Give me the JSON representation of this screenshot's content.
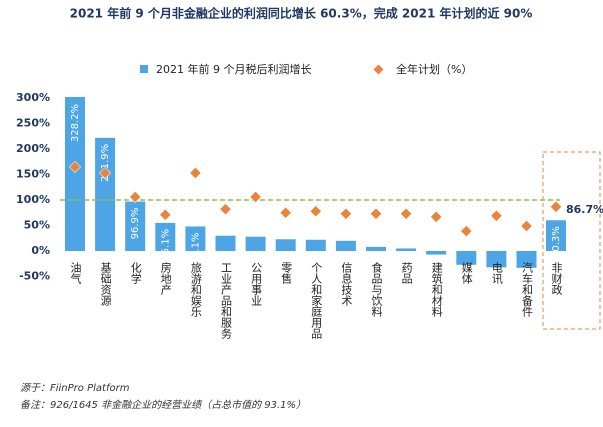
{
  "chart_data": {
    "type": "bar",
    "title": "2021 年前 9 个月非金融企业的利润同比增长 60.3%，完成 2021 年计划的近 90%",
    "categories": [
      "油气",
      "基础资源",
      "化学",
      "房地产",
      "旅游和娱乐",
      "工业产品和服务",
      "公用事业",
      "零售",
      "个人和家庭用品",
      "信息技术",
      "食品与饮料",
      "药品",
      "建筑和材料",
      "媒体",
      "电讯",
      "汽车和备件",
      "非财政"
    ],
    "series": [
      {
        "name": "2021 年前 9 个月税后利润增长",
        "color": "#4ea5e6",
        "values": [
          328.2,
          221.9,
          96.9,
          55.1,
          48.1,
          30,
          28,
          23,
          22,
          20,
          8,
          5,
          -7,
          -27,
          -32,
          -33,
          60.3
        ],
        "value_labels": [
          "328.2%",
          "221.9%",
          "96.9%",
          "55.1%",
          "48.1%",
          null,
          null,
          null,
          null,
          null,
          null,
          null,
          null,
          null,
          null,
          null,
          "60.3%"
        ]
      },
      {
        "name": "全年计划（%）",
        "color": "#e8853d",
        "marker": "diamond",
        "values": [
          165,
          153,
          106,
          71,
          153,
          82,
          106,
          75,
          78,
          73,
          73,
          73,
          67,
          39,
          69,
          49,
          86.7
        ],
        "value_labels": [
          null,
          null,
          null,
          null,
          null,
          null,
          null,
          null,
          null,
          null,
          null,
          null,
          null,
          null,
          null,
          null,
          "86.7%"
        ]
      }
    ],
    "reference_line": 100,
    "ylim": [
      -50,
      300
    ],
    "yticks": [
      {
        "value": -50,
        "label": "-50%"
      },
      {
        "value": 0,
        "label": "0%"
      },
      {
        "value": 50,
        "label": "50%"
      },
      {
        "value": 100,
        "label": "100%"
      },
      {
        "value": 150,
        "label": "150%"
      },
      {
        "value": 200,
        "label": "200%"
      },
      {
        "value": 250,
        "label": "250%"
      },
      {
        "value": 300,
        "label": "300%"
      }
    ],
    "source": "源于：FiinPro Platform",
    "note": "备注：926/1645 非金融企业的经营业绩（占总市值的 93.1%）"
  }
}
